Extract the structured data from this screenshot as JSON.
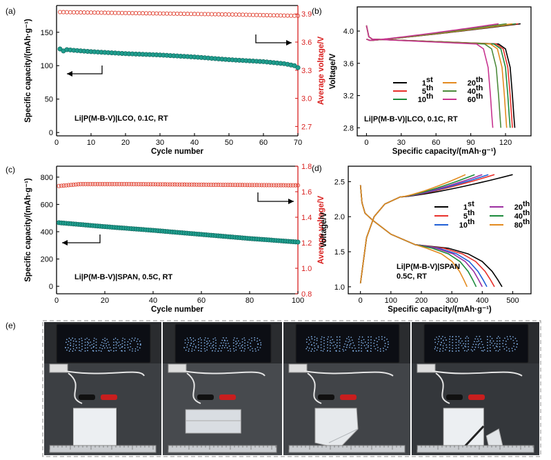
{
  "chart_data": [
    {
      "panel": "(a)",
      "type": "scatter",
      "xlabel": "Cycle number",
      "ylabel": "Specific capacity/(mAh·g⁻¹)",
      "y2label": "Average voltage/V",
      "xlim": [
        0,
        70
      ],
      "ylim": [
        -5,
        190
      ],
      "y2lim": [
        2.6,
        3.99
      ],
      "xticks": [
        0,
        10,
        20,
        30,
        40,
        50,
        60,
        70
      ],
      "yticks": [
        0,
        50,
        100,
        150
      ],
      "y2ticks": [
        2.7,
        3.0,
        3.3,
        3.6,
        3.9
      ],
      "annotation": "Li|P(M-B-V)|LCO, 0.1C, RT",
      "series": [
        {
          "axis": "left",
          "color": "#1f9e8e",
          "marker": "filled-circle",
          "x_range": [
            1,
            70
          ],
          "anchors": [
            [
              1,
              125
            ],
            [
              2,
              122
            ],
            [
              3,
              124
            ],
            [
              5,
              123
            ],
            [
              10,
              121
            ],
            [
              20,
              118
            ],
            [
              30,
              116
            ],
            [
              40,
              113
            ],
            [
              50,
              109
            ],
            [
              60,
              106
            ],
            [
              66,
              103
            ],
            [
              69,
              100
            ],
            [
              70,
              97
            ]
          ]
        },
        {
          "axis": "right",
          "color": "#e04030",
          "marker": "open-circle",
          "x_range": [
            1,
            70
          ],
          "anchors": [
            [
              1,
              3.92
            ],
            [
              10,
              3.915
            ],
            [
              30,
              3.905
            ],
            [
              50,
              3.895
            ],
            [
              70,
              3.88
            ]
          ]
        }
      ]
    },
    {
      "panel": "(b)",
      "type": "line",
      "xlabel": "Specific capacity/(mAh·g⁻¹)",
      "ylabel": "Voltage/V",
      "xlim": [
        -8,
        142
      ],
      "ylim": [
        2.7,
        4.3
      ],
      "xticks": [
        0,
        30,
        60,
        90,
        120
      ],
      "yticks": [
        2.8,
        3.2,
        3.6,
        4.0
      ],
      "annotation": "Li|P(M-B-V)|LCO, 0.1C, RT",
      "series": [
        {
          "name": "1st",
          "color": "#000000",
          "charge_cap": 133,
          "discharge_cap": 128
        },
        {
          "name": "5th",
          "color": "#e8302a",
          "charge_cap": 131,
          "discharge_cap": 126
        },
        {
          "name": "10th",
          "color": "#1b8a3b",
          "charge_cap": 129,
          "discharge_cap": 124
        },
        {
          "name": "20th",
          "color": "#e38a1e",
          "charge_cap": 126,
          "discharge_cap": 121
        },
        {
          "name": "40th",
          "color": "#4c8a3a",
          "charge_cap": 121,
          "discharge_cap": 116
        },
        {
          "name": "60th",
          "color": "#c7338f",
          "charge_cap": 114,
          "discharge_cap": 109
        }
      ]
    },
    {
      "panel": "(c)",
      "type": "scatter",
      "xlabel": "Cycle number",
      "ylabel": "Specific capacity/(mAh·g⁻¹)",
      "y2label": "Average voltage/V",
      "xlim": [
        0,
        100
      ],
      "ylim": [
        -55,
        880
      ],
      "y2lim": [
        0.8,
        1.8
      ],
      "xticks": [
        0,
        20,
        40,
        60,
        80,
        100
      ],
      "yticks": [
        0,
        200,
        400,
        600,
        800
      ],
      "y2ticks": [
        0.8,
        1.0,
        1.2,
        1.4,
        1.6,
        1.8
      ],
      "annotation": "Li|P(M-B-V)|SPAN, 0.5C, RT",
      "series": [
        {
          "axis": "left",
          "color": "#1f9e8e",
          "marker": "filled-circle",
          "x_range": [
            1,
            100
          ],
          "anchors": [
            [
              1,
              466
            ],
            [
              20,
              437
            ],
            [
              40,
              410
            ],
            [
              60,
              380
            ],
            [
              80,
              350
            ],
            [
              100,
              324
            ]
          ]
        },
        {
          "axis": "right",
          "color": "#e04030",
          "marker": "open-circle",
          "x_range": [
            1,
            100
          ],
          "anchors": [
            [
              1,
              1.645
            ],
            [
              10,
              1.66
            ],
            [
              30,
              1.66
            ],
            [
              60,
              1.655
            ],
            [
              100,
              1.65
            ]
          ]
        }
      ]
    },
    {
      "panel": "(d)",
      "type": "line",
      "xlabel": "Specific capacity/(mAh·g⁻¹)",
      "ylabel": "Voltage/V",
      "xlim": [
        -40,
        560
      ],
      "ylim": [
        0.9,
        2.72
      ],
      "xticks": [
        0,
        100,
        200,
        300,
        400,
        500
      ],
      "yticks": [
        1.0,
        1.5,
        2.0,
        2.5
      ],
      "annotation": "Li|P(M-B-V)|SPAN\n0.5C, RT",
      "series": [
        {
          "name": "1st",
          "color": "#000000",
          "charge_cap": 500,
          "discharge_cap": 465
        },
        {
          "name": "5th",
          "color": "#e8302a",
          "charge_cap": 440,
          "discharge_cap": 440
        },
        {
          "name": "10th",
          "color": "#1f5fd6",
          "charge_cap": 420,
          "discharge_cap": 415
        },
        {
          "name": "20th",
          "color": "#9b2ea0",
          "charge_cap": 400,
          "discharge_cap": 400
        },
        {
          "name": "40th",
          "color": "#1b8a3b",
          "charge_cap": 375,
          "discharge_cap": 380
        },
        {
          "name": "80th",
          "color": "#e38a1e",
          "charge_cap": 345,
          "discharge_cap": 350
        }
      ]
    }
  ],
  "panel_labels": {
    "a": "(a)",
    "b": "(b)",
    "c": "(c)",
    "d": "(d)",
    "e": "(e)"
  },
  "photos": {
    "sign_text": "SINANO",
    "count": 4,
    "states": [
      "flat",
      "folded",
      "bent",
      "cut"
    ],
    "descriptions": [
      "LED sign powered by flat pouch cell",
      "LED sign powered by folded pouch cell",
      "LED sign powered by bent pouch cell",
      "LED sign powered by cut pouch cell"
    ]
  },
  "colors": {
    "teal": "#1f9e8e",
    "red": "#d9201f"
  }
}
